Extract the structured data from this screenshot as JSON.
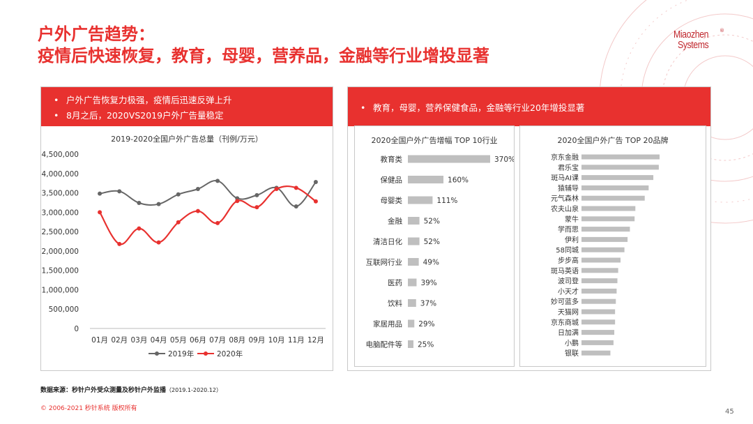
{
  "header": {
    "title_line1": "户外广告趋势：",
    "title_line2": "疫情后快速恢复，教育，母婴，营养品，金融等行业增投显著"
  },
  "logo": {
    "line1": "Miaozhen",
    "line2": "Systems",
    "tm": "®"
  },
  "left_panel": {
    "bullets": [
      "户外广告恢复力极强，疫情后迅速反弹上升",
      "8月之后，2020VS2019户外广告量稳定"
    ]
  },
  "right_panel": {
    "bullet": "教育，母婴，营养保健食品，金融等行业20年增投显著"
  },
  "chart_data": [
    {
      "type": "line",
      "title": "2019-2020全国户外广告总量（刊例/万元）",
      "categories": [
        "01月",
        "02月",
        "03月",
        "04月",
        "05月",
        "06月",
        "07月",
        "08月",
        "09月",
        "10月",
        "11月",
        "12月"
      ],
      "series": [
        {
          "name": "2019年",
          "color": "#666666",
          "values": [
            3480000,
            3540000,
            3240000,
            3210000,
            3460000,
            3600000,
            3810000,
            3360000,
            3440000,
            3630000,
            3150000,
            3780000
          ]
        },
        {
          "name": "2020年",
          "color": "#e8312f",
          "values": [
            3000000,
            2180000,
            2580000,
            2220000,
            2740000,
            3030000,
            2720000,
            3290000,
            3130000,
            3600000,
            3630000,
            3280000
          ]
        }
      ],
      "ylim": [
        0,
        4500000
      ],
      "yticks": [
        "0",
        "500,000",
        "1,000,000",
        "1,500,000",
        "2,000,000",
        "2,500,000",
        "3,000,000",
        "3,500,000",
        "4,000,000",
        "4,500,000"
      ],
      "legend": "bottom"
    },
    {
      "type": "bar",
      "orientation": "horizontal",
      "title": "2020全国户外广告增幅 TOP 10行业",
      "categories": [
        "教育类",
        "保健品",
        "母婴类",
        "金融",
        "清洁日化",
        "互联网行业",
        "医药",
        "饮料",
        "家居用品",
        "电脑配件等"
      ],
      "values": [
        370,
        160,
        111,
        52,
        52,
        49,
        39,
        37,
        29,
        25
      ],
      "labels": [
        "370%",
        "160%",
        "111%",
        "52%",
        "52%",
        "49%",
        "39%",
        "37%",
        "29%",
        "25%"
      ],
      "bar_color": "#bfbfbf"
    },
    {
      "type": "bar",
      "orientation": "horizontal",
      "title": "2020全国户外广告 TOP 20品牌",
      "categories": [
        "京东金融",
        "君乐宝",
        "斑马AI课",
        "猿辅导",
        "元气森林",
        "农夫山泉",
        "蒙牛",
        "学而思",
        "伊利",
        "58同城",
        "步步高",
        "斑马英语",
        "波司登",
        "小天才",
        "妙可蓝多",
        "天猫网",
        "京东商城",
        "日加满",
        "小鹏",
        "银联"
      ],
      "values": [
        100,
        99,
        92,
        86,
        81,
        69,
        68,
        62,
        59,
        55,
        50,
        47,
        46,
        45,
        44,
        43,
        43,
        42,
        41,
        37
      ],
      "bar_color": "#bfbfbf"
    }
  ],
  "footer": {
    "source": "数据来源：秒针户外受众测量及秒针户外监播",
    "source_range": "（2019.1-2020.12）",
    "copyright": "© 2006-2021 秒针系统 版权所有",
    "page": "45"
  }
}
